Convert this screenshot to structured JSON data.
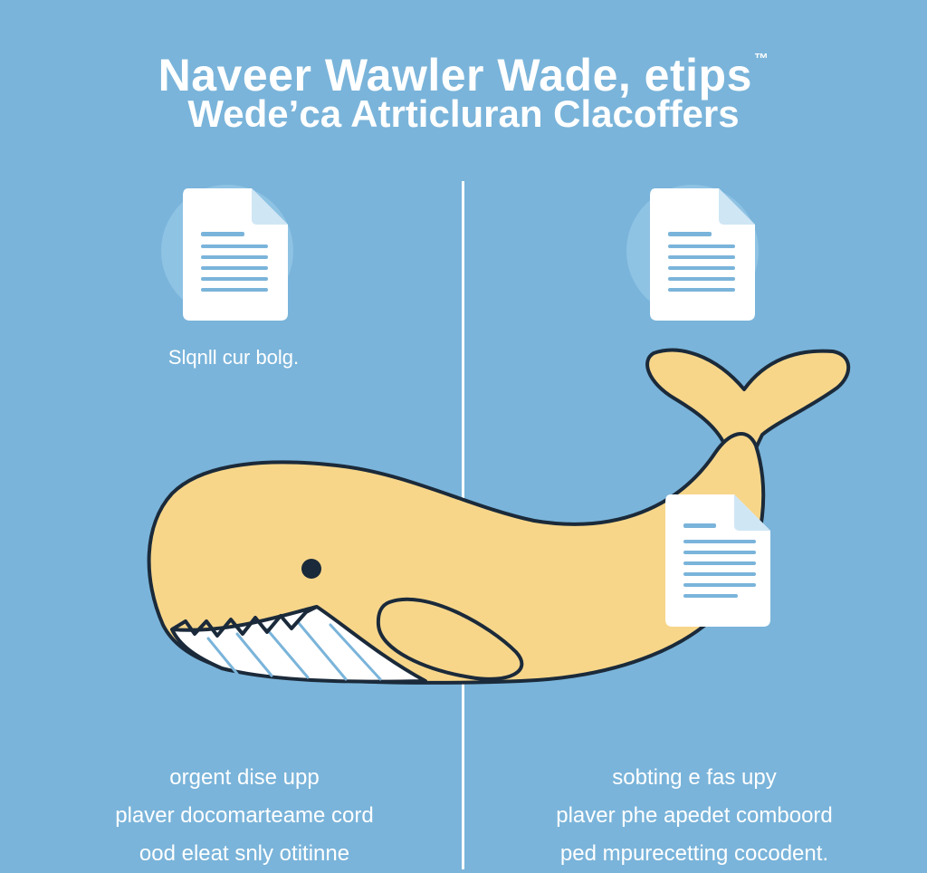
{
  "header": {
    "title_line_1": "Naveer Wawler Wade, etips",
    "trademark": "™",
    "title_line_2": "Wede’ca Atrticluran Clacoffers"
  },
  "left_panel": {
    "caption": "Slqnll cur bolg.",
    "body_lines": [
      "orgent dise upp",
      "plaver docomarteame cord",
      "ood eleat snly otitinne"
    ]
  },
  "right_panel": {
    "body_lines": [
      "sobting e fas upy",
      "plaver phe apedet comboord",
      "ped mpurecetting cocodent."
    ]
  },
  "illustration": {
    "subject": "whale",
    "icons": [
      "document-icon",
      "document-icon",
      "document-icon"
    ]
  },
  "colors": {
    "background": "#7ab4da",
    "whale_body": "#f7d68a",
    "outline": "#1b2a3a",
    "document": "#ffffff",
    "document_lines": "#7ab4da"
  }
}
